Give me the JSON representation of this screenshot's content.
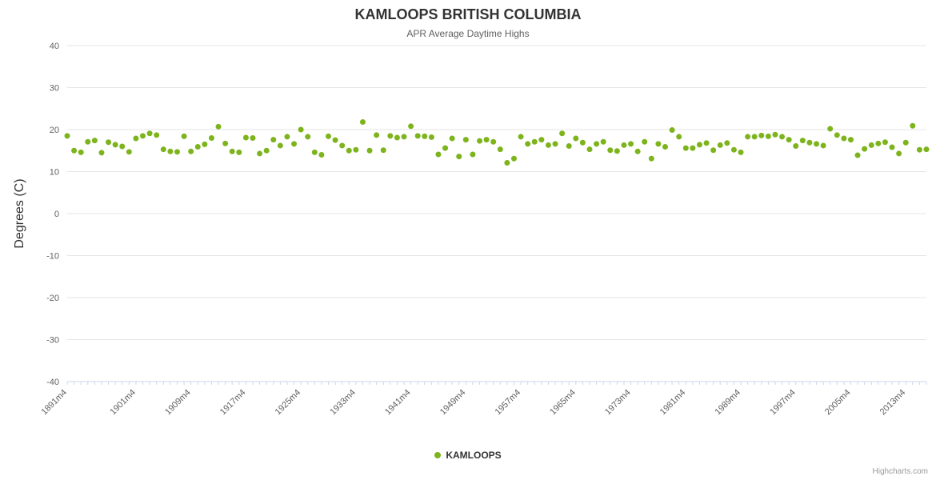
{
  "credits": {
    "label": "Highcharts.com"
  },
  "chart_data": {
    "type": "scatter",
    "title": "KAMLOOPS BRITISH COLUMBIA",
    "subtitle": "APR Average Daytime Highs",
    "ylabel": "Degrees (C)",
    "ylim": [
      -40,
      40
    ],
    "y_tick_step": 10,
    "grid": true,
    "legend_position": "bottom-center",
    "x_suffix": "m4",
    "x_ticks": [
      1891,
      1901,
      1909,
      1917,
      1925,
      1933,
      1941,
      1949,
      1957,
      1965,
      1973,
      1981,
      1989,
      1997,
      2005,
      2013
    ],
    "colors": {
      "point": "#7db41c",
      "grid": "#e6e6e6",
      "axis": "#ccd6eb",
      "tick_label": "#606060"
    },
    "series": [
      {
        "name": "KAMLOOPS",
        "color": "#7db41c",
        "x": [
          1891,
          1892,
          1893,
          1894,
          1895,
          1896,
          1897,
          1898,
          1899,
          1900,
          1901,
          1902,
          1903,
          1904,
          1905,
          1906,
          1907,
          1908,
          1909,
          1910,
          1911,
          1912,
          1913,
          1914,
          1915,
          1916,
          1917,
          1918,
          1919,
          1920,
          1921,
          1922,
          1923,
          1924,
          1925,
          1926,
          1927,
          1928,
          1929,
          1930,
          1931,
          1932,
          1933,
          1934,
          1935,
          1936,
          1937,
          1938,
          1939,
          1940,
          1941,
          1942,
          1943,
          1944,
          1945,
          1946,
          1947,
          1948,
          1949,
          1950,
          1951,
          1952,
          1953,
          1954,
          1955,
          1956,
          1957,
          1958,
          1959,
          1960,
          1961,
          1962,
          1963,
          1964,
          1965,
          1966,
          1967,
          1968,
          1969,
          1970,
          1971,
          1972,
          1973,
          1974,
          1975,
          1976,
          1977,
          1978,
          1979,
          1980,
          1981,
          1982,
          1983,
          1984,
          1985,
          1986,
          1987,
          1988,
          1989,
          1990,
          1991,
          1992,
          1993,
          1994,
          1995,
          1996,
          1997,
          1998,
          1999,
          2000,
          2001,
          2002,
          2003,
          2004,
          2005,
          2006,
          2007,
          2008,
          2009,
          2010,
          2011,
          2012,
          2013,
          2014,
          2015,
          2016
        ],
        "y": [
          18.5,
          15.0,
          14.6,
          17.1,
          17.4,
          14.5,
          17.0,
          16.4,
          16.0,
          14.7,
          17.9,
          18.5,
          19.1,
          18.7,
          15.3,
          14.8,
          14.7,
          18.4,
          14.8,
          15.9,
          16.5,
          18.0,
          20.7,
          16.7,
          14.8,
          14.6,
          18.1,
          18.0,
          14.3,
          15.0,
          17.6,
          16.2,
          18.3,
          16.6,
          20.0,
          18.3,
          14.6,
          14.0,
          18.4,
          17.5,
          16.2,
          15.0,
          15.2,
          21.8,
          15.0,
          18.7,
          15.1,
          18.5,
          18.1,
          18.3,
          20.8,
          18.5,
          18.4,
          18.2,
          14.1,
          15.6,
          17.9,
          13.6,
          17.6,
          14.1,
          17.3,
          17.6,
          17.1,
          15.3,
          12.1,
          13.1,
          18.3,
          16.6,
          17.1,
          17.6,
          16.3,
          16.6,
          19.1,
          16.1,
          17.9,
          16.9,
          15.3,
          16.6,
          17.1,
          15.1,
          14.9,
          16.3,
          16.6,
          14.8,
          17.1,
          13.1,
          16.6,
          15.9,
          19.9,
          18.3,
          15.6,
          15.6,
          16.4,
          16.8,
          15.1,
          16.3,
          16.8,
          15.2,
          14.6,
          18.3,
          18.3,
          18.6,
          18.4,
          18.8,
          18.3,
          17.6,
          16.1,
          17.4,
          16.9,
          16.6,
          16.2,
          20.2,
          18.7,
          17.9,
          17.6,
          13.9,
          15.4,
          16.3,
          16.7,
          17.0,
          15.8,
          14.3,
          16.9,
          20.9,
          15.2,
          15.3
        ]
      }
    ]
  }
}
